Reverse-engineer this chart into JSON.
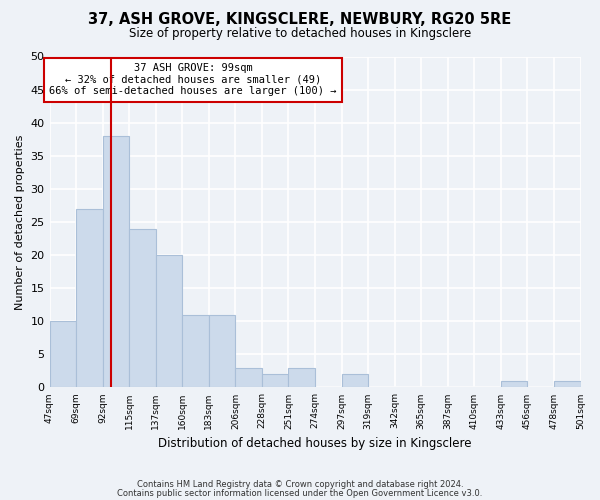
{
  "title": "37, ASH GROVE, KINGSCLERE, NEWBURY, RG20 5RE",
  "subtitle": "Size of property relative to detached houses in Kingsclere",
  "xlabel": "Distribution of detached houses by size in Kingsclere",
  "ylabel": "Number of detached properties",
  "counts": [
    10,
    27,
    38,
    24,
    20,
    11,
    11,
    3,
    2,
    3,
    0,
    2,
    0,
    0,
    0,
    0,
    0,
    1,
    0,
    1
  ],
  "bar_color": "#ccdaeb",
  "bar_edge_color": "#aabfd8",
  "vline_bin_index": 2,
  "vline_color": "#cc0000",
  "ylim": [
    0,
    50
  ],
  "yticks": [
    0,
    5,
    10,
    15,
    20,
    25,
    30,
    35,
    40,
    45,
    50
  ],
  "annotation_title": "37 ASH GROVE: 99sqm",
  "annotation_line1": "← 32% of detached houses are smaller (49)",
  "annotation_line2": "66% of semi-detached houses are larger (100) →",
  "annotation_box_color": "#ffffff",
  "annotation_box_edge": "#cc0000",
  "footer1": "Contains HM Land Registry data © Crown copyright and database right 2024.",
  "footer2": "Contains public sector information licensed under the Open Government Licence v3.0.",
  "background_color": "#eef2f7",
  "plot_background": "#eef2f7",
  "grid_color": "#ffffff",
  "tick_labels": [
    "47sqm",
    "69sqm",
    "92sqm",
    "115sqm",
    "137sqm",
    "160sqm",
    "183sqm",
    "206sqm",
    "228sqm",
    "251sqm",
    "274sqm",
    "297sqm",
    "319sqm",
    "342sqm",
    "365sqm",
    "387sqm",
    "410sqm",
    "433sqm",
    "456sqm",
    "478sqm",
    "501sqm"
  ]
}
